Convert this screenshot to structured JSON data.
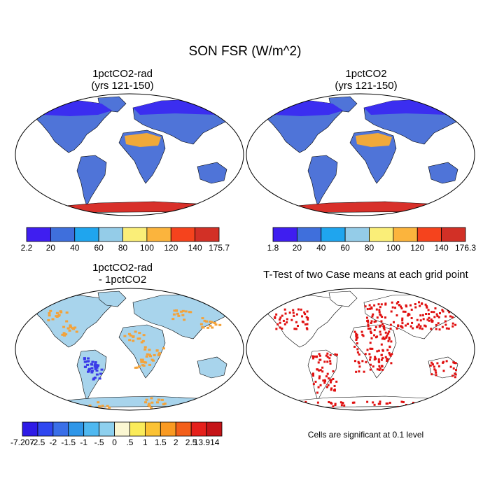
{
  "title": "SON FSR (W/m^2)",
  "panels": {
    "top_left": {
      "title_line1": "1pctCO2-rad",
      "title_line2": "(yrs 121-150)"
    },
    "top_right": {
      "title_line1": "1pctCO2",
      "title_line2": "(yrs 121-150)"
    },
    "bottom_left": {
      "title_line1": "1pctCO2-rad",
      "title_line2": "- 1pctCO2"
    },
    "bottom_right": {
      "title": "T-Test of two Case means at each grid point",
      "note": "Cells are significant at 0.1 level"
    }
  },
  "colorbars": {
    "top_left": {
      "colors": [
        "#3f1ef0",
        "#3f6fdc",
        "#1fa5ee",
        "#94cce8",
        "#faee78",
        "#fbb43d",
        "#f5431d",
        "#d23026"
      ],
      "labels": [
        "2.2",
        "20",
        "40",
        "60",
        "80",
        "100",
        "120",
        "140",
        "175.7"
      ]
    },
    "top_right": {
      "colors": [
        "#3f1ef0",
        "#3f6fdc",
        "#1fa5ee",
        "#94cce8",
        "#faee78",
        "#fbb43d",
        "#f5431d",
        "#d23026"
      ],
      "labels": [
        "1.8",
        "20",
        "40",
        "60",
        "80",
        "100",
        "120",
        "140",
        "176.3"
      ]
    },
    "bottom_left": {
      "colors": [
        "#2e1be6",
        "#2f47f0",
        "#3a6fe8",
        "#2f96e8",
        "#4fb8f0",
        "#8ed0ee",
        "#fbf7d2",
        "#faeb5a",
        "#fbc234",
        "#f99a22",
        "#f35f1a",
        "#e5201b",
        "#c51418"
      ],
      "labels": [
        "-7.207",
        "-2.5",
        "-2",
        "-1.5",
        "-1",
        "-.5",
        "0",
        ".5",
        "1",
        "1.5",
        "2",
        "2.5",
        "13.914"
      ]
    }
  },
  "map_fills": {
    "top_ocean": "#ffffff",
    "top_land": "#4f74d8",
    "top_high_lat": "#3b2ef0",
    "top_desert": "#f0a93a",
    "top_antarctica": "#d8302a",
    "diff_land": "#a8d4ec",
    "diff_pos": "#f3a23a",
    "diff_neg": "#3a3ae8",
    "sig": "#e01010"
  }
}
